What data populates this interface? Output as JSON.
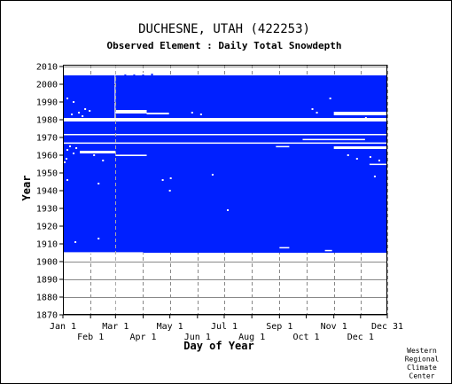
{
  "chart_data": {
    "type": "heatmap",
    "title": "DUCHESNE, UTAH   (422253)",
    "subtitle": "Observed Element : Daily Total Snowdepth",
    "xlabel": "Day of Year",
    "ylabel": "Year",
    "xlim": [
      1,
      365
    ],
    "ylim": [
      1870,
      2011
    ],
    "x_ticks_top_row": [
      {
        "label": "Jan 1",
        "day": 1
      },
      {
        "label": "Mar 1",
        "day": 60
      },
      {
        "label": "May 1",
        "day": 121
      },
      {
        "label": "Jul 1",
        "day": 182
      },
      {
        "label": "Sep 1",
        "day": 244
      },
      {
        "label": "Nov 1",
        "day": 305
      },
      {
        "label": "Dec 31",
        "day": 365
      }
    ],
    "x_ticks_bottom_row": [
      {
        "label": "Feb 1",
        "day": 32
      },
      {
        "label": "Apr 1",
        "day": 91
      },
      {
        "label": "Jun 1",
        "day": 152
      },
      {
        "label": "Aug 1",
        "day": 213
      },
      {
        "label": "Oct 1",
        "day": 274
      },
      {
        "label": "Dec 1",
        "day": 335
      }
    ],
    "y_ticks": [
      1870,
      1880,
      1890,
      1900,
      1910,
      1920,
      1930,
      1940,
      1950,
      1960,
      1970,
      1980,
      1990,
      2000,
      2010
    ],
    "grid": true,
    "colors": {
      "data": "#0020ff",
      "missing": "#ffffff",
      "grid": "#888888",
      "axes": "#000000"
    },
    "data_blocks": [
      {
        "years": [
          1905,
          1979
        ],
        "days": [
          1,
          365
        ],
        "state": "observed"
      },
      {
        "years": [
          1981,
          2005
        ],
        "days": [
          60,
          365
        ],
        "state": "observed"
      },
      {
        "years": [
          1981,
          2005
        ],
        "days": [
          1,
          59
        ],
        "state": "observed"
      }
    ],
    "missing_gaps": [
      {
        "years": [
          1905,
          1905.3
        ],
        "days": [
          1,
          91
        ],
        "state": "missing"
      },
      {
        "years": [
          1979,
          1981
        ],
        "days": [
          1,
          365
        ],
        "state": "missing"
      },
      {
        "years": [
          1971.5,
          1972
        ],
        "days": [
          1,
          365
        ],
        "state": "missing"
      },
      {
        "years": [
          1966.5,
          1967.2
        ],
        "days": [
          1,
          365
        ],
        "state": "missing"
      },
      {
        "years": [
          2005,
          2006
        ],
        "days": [
          60,
          95
        ],
        "state": "sparse"
      },
      {
        "years": [
          1983.5,
          1985.5
        ],
        "days": [
          60,
          95
        ],
        "state": "missing"
      },
      {
        "years": [
          1983,
          1984
        ],
        "days": [
          95,
          120
        ],
        "state": "missing"
      },
      {
        "years": [
          1982.5,
          1984.5
        ],
        "days": [
          305,
          365
        ],
        "state": "missing"
      },
      {
        "years": [
          1968.5,
          1969.2
        ],
        "days": [
          270,
          340
        ],
        "state": "missing"
      },
      {
        "years": [
          1964.5,
          1965.2
        ],
        "days": [
          240,
          255
        ],
        "state": "missing"
      },
      {
        "years": [
          1961,
          1962.5
        ],
        "days": [
          20,
          60
        ],
        "state": "missing"
      },
      {
        "years": [
          1959.5,
          1960.3
        ],
        "days": [
          60,
          95
        ],
        "state": "missing"
      },
      {
        "years": [
          1954.5,
          1955.2
        ],
        "days": [
          345,
          365
        ],
        "state": "missing"
      },
      {
        "years": [
          1907.5,
          1908.2
        ],
        "days": [
          244,
          255
        ],
        "state": "missing"
      },
      {
        "years": [
          1906,
          1906.6
        ],
        "days": [
          295,
          303
        ],
        "state": "missing"
      },
      {
        "years": [
          1963.5,
          1965
        ],
        "days": [
          305,
          365
        ],
        "state": "missing"
      }
    ],
    "scattered_missing": [
      {
        "year": 1992,
        "day": 5
      },
      {
        "year": 1990,
        "day": 12
      },
      {
        "year": 1986,
        "day": 25
      },
      {
        "year": 1985,
        "day": 30
      },
      {
        "year": 1984,
        "day": 18
      },
      {
        "year": 1983,
        "day": 10
      },
      {
        "year": 1982,
        "day": 22
      },
      {
        "year": 1984,
        "day": 145
      },
      {
        "year": 1983,
        "day": 155
      },
      {
        "year": 1986,
        "day": 280
      },
      {
        "year": 1984,
        "day": 285
      },
      {
        "year": 1992,
        "day": 300
      },
      {
        "year": 1965,
        "day": 8
      },
      {
        "year": 1964,
        "day": 15
      },
      {
        "year": 1963,
        "day": 5
      },
      {
        "year": 1962,
        "day": 28
      },
      {
        "year": 1961,
        "day": 12
      },
      {
        "year": 1960,
        "day": 35
      },
      {
        "year": 1958,
        "day": 4
      },
      {
        "year": 1957,
        "day": 45
      },
      {
        "year": 1956,
        "day": 2
      },
      {
        "year": 1960,
        "day": 320
      },
      {
        "year": 1959,
        "day": 345
      },
      {
        "year": 1958,
        "day": 330
      },
      {
        "year": 1957,
        "day": 355
      },
      {
        "year": 1949,
        "day": 168
      },
      {
        "year": 1947,
        "day": 121
      },
      {
        "year": 1946,
        "day": 112
      },
      {
        "year": 1944,
        "day": 40
      },
      {
        "year": 1948,
        "day": 350
      },
      {
        "year": 1946,
        "day": 5
      },
      {
        "year": 1929,
        "day": 185
      },
      {
        "year": 1940,
        "day": 120
      },
      {
        "year": 1911,
        "day": 14
      },
      {
        "year": 1913,
        "day": 40
      },
      {
        "year": 1964,
        "day": 335
      },
      {
        "year": 1981,
        "day": 340
      },
      {
        "year": 2006,
        "day": 70
      },
      {
        "year": 2006,
        "day": 80
      },
      {
        "year": 2006,
        "day": 90
      }
    ],
    "credit": [
      "Western",
      "Regional",
      "Climate",
      "Center"
    ]
  }
}
